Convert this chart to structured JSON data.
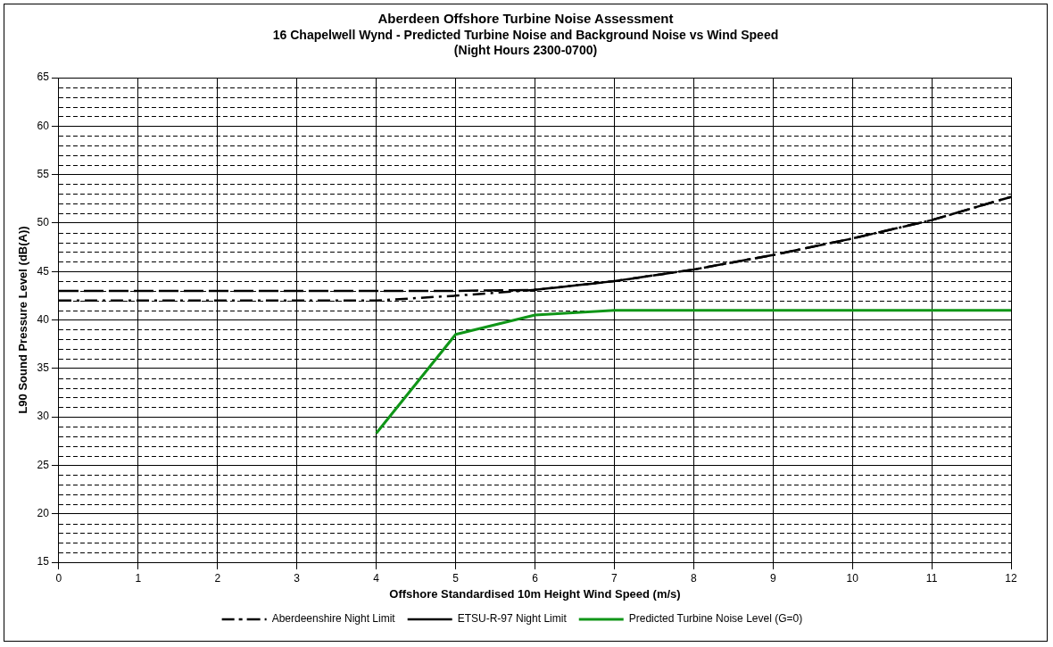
{
  "chart_data": {
    "type": "line",
    "title": "Aberdeen Offshore Turbine Noise Assessment",
    "subtitle": "16 Chapelwell Wynd - Predicted Turbine Noise and Background Noise vs Wind Speed\n(Night Hours 2300-0700)",
    "xlabel": "Offshore Standardised 10m Height Wind Speed (m/s)",
    "ylabel": "L90 Sound Pressure Level (dB(A))",
    "x": [
      0,
      1,
      2,
      3,
      4,
      5,
      6,
      7,
      8,
      9,
      10,
      11,
      12
    ],
    "series": [
      {
        "name": "Aberdeenshire Night Limit",
        "color": "#000000",
        "line_style": "dashdot",
        "values": [
          42,
          42,
          42,
          42,
          42,
          42.5,
          43.1,
          44,
          45.2,
          46.7,
          48.4,
          50.3,
          52.7
        ]
      },
      {
        "name": "ETSU-R-97 Night Limit",
        "color": "#000000",
        "line_style": "dashed",
        "values": [
          43,
          43,
          43,
          43,
          43,
          43,
          43.1,
          44,
          45.2,
          46.7,
          48.4,
          50.3,
          52.7
        ]
      },
      {
        "name": "Predicted Turbine Noise Level (G=0)",
        "color": "#109618",
        "line_style": "solid",
        "values": [
          null,
          null,
          null,
          null,
          28.3,
          38.5,
          40.5,
          41,
          41,
          41,
          41,
          41,
          41
        ]
      }
    ],
    "xlim": [
      0,
      12
    ],
    "xticks": [
      0,
      1,
      2,
      3,
      4,
      5,
      6,
      7,
      8,
      9,
      10,
      11,
      12
    ],
    "ylim": [
      15,
      65
    ],
    "yticks": [
      15,
      20,
      25,
      30,
      35,
      40,
      45,
      50,
      55,
      60,
      65
    ],
    "grid": true,
    "legend": "bottom",
    "marker": "none"
  }
}
